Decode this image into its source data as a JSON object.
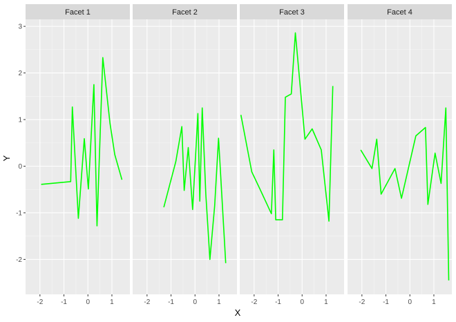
{
  "chart_data": {
    "type": "line",
    "xlabel": "X",
    "ylabel": "Y",
    "xlim": [
      -2.6,
      1.75
    ],
    "ylim": [
      -2.75,
      3.15
    ],
    "x_ticks": [
      -2,
      -1,
      0,
      1
    ],
    "x_tick_labels": [
      "-2",
      "-1",
      "0",
      "1"
    ],
    "y_ticks": [
      -2,
      -1,
      0,
      1,
      2,
      3
    ],
    "y_tick_labels": [
      "-2",
      "-1",
      "0",
      "1",
      "2",
      "3"
    ],
    "grid": true,
    "line_color": "#00ff00",
    "panel_background": "#ebebeb",
    "strip_background": "#d9d9d9",
    "facets": [
      {
        "name": "Facet 1",
        "x": [
          -1.95,
          -0.72,
          -0.65,
          -0.4,
          -0.15,
          0.02,
          0.25,
          0.38,
          0.62,
          0.92,
          1.12,
          1.42
        ],
        "y": [
          -0.39,
          -0.33,
          1.27,
          -1.12,
          0.59,
          -0.49,
          1.75,
          -1.28,
          2.33,
          0.92,
          0.25,
          -0.29
        ]
      },
      {
        "name": "Facet 2",
        "x": [
          -1.3,
          -0.8,
          -0.55,
          -0.45,
          -0.28,
          -0.1,
          0.12,
          0.2,
          0.3,
          0.45,
          0.62,
          0.82,
          0.98,
          1.28
        ],
        "y": [
          -0.88,
          0.1,
          0.85,
          -0.52,
          0.4,
          -0.93,
          1.13,
          -0.75,
          1.25,
          -0.6,
          -2.0,
          -0.85,
          0.6,
          -2.08
        ]
      },
      {
        "name": "Facet 3",
        "x": [
          -2.55,
          -2.1,
          -1.75,
          -1.28,
          -1.18,
          -1.1,
          -0.82,
          -0.7,
          -0.45,
          -0.28,
          0.12,
          0.42,
          0.8,
          1.12,
          1.28
        ],
        "y": [
          1.1,
          -0.12,
          -0.5,
          -1.02,
          0.35,
          -1.15,
          -1.15,
          1.48,
          1.55,
          2.86,
          0.58,
          0.8,
          0.35,
          -1.18,
          1.72
        ]
      },
      {
        "name": "Facet 4",
        "x": [
          -2.05,
          -1.58,
          -1.38,
          -1.2,
          -0.62,
          -0.35,
          0.25,
          0.65,
          0.75,
          1.05,
          1.3,
          1.5,
          1.62
        ],
        "y": [
          0.35,
          -0.05,
          0.58,
          -0.6,
          -0.05,
          -0.69,
          0.65,
          0.83,
          -0.82,
          0.28,
          -0.37,
          1.25,
          -2.45
        ]
      }
    ]
  }
}
